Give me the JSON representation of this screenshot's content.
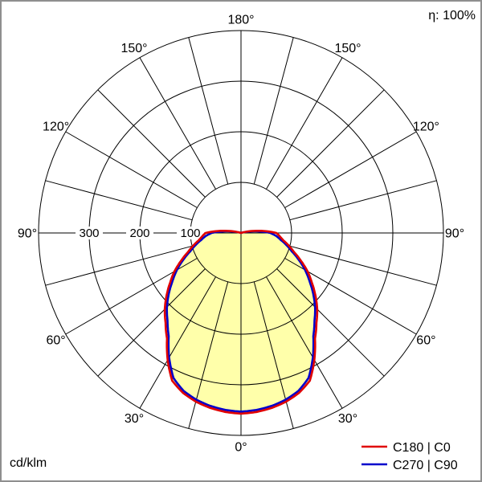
{
  "header": {
    "efficiency": "η: 100%"
  },
  "footer": {
    "unit": "cd/klm"
  },
  "legend": {
    "items": [
      {
        "label": "C180 | C0",
        "color": "#e00000"
      },
      {
        "label": "C270 | C90",
        "color": "#0000cc"
      }
    ]
  },
  "chart_data": {
    "type": "polar",
    "unit": "cd/klm",
    "efficiency_percent": 100,
    "radial_max": 400,
    "rings": [
      100,
      200,
      300,
      400
    ],
    "radial_ticks": [
      300,
      200,
      100
    ],
    "spoke_step_deg": 15,
    "grid_color": "#000000",
    "fill_color": "#ffffaa",
    "angle_labels": [
      {
        "deg": 0,
        "side": 0,
        "text": "0°"
      },
      {
        "deg": 30,
        "side": -1,
        "text": "30°"
      },
      {
        "deg": 30,
        "side": 1,
        "text": "30°"
      },
      {
        "deg": 60,
        "side": -1,
        "text": "60°"
      },
      {
        "deg": 60,
        "side": 1,
        "text": "60°"
      },
      {
        "deg": 90,
        "side": -1,
        "text": "90°"
      },
      {
        "deg": 90,
        "side": 1,
        "text": "90°"
      },
      {
        "deg": 120,
        "side": -1,
        "text": "120°"
      },
      {
        "deg": 120,
        "side": 1,
        "text": "120°"
      },
      {
        "deg": 150,
        "side": -1,
        "text": "150°"
      },
      {
        "deg": 150,
        "side": 1,
        "text": "150°"
      },
      {
        "deg": 180,
        "side": 0,
        "text": "180°"
      }
    ],
    "series": [
      {
        "name": "C180 | C0",
        "color": "#e00000",
        "symmetric": true,
        "points": [
          [
            0,
            357
          ],
          [
            5,
            355
          ],
          [
            10,
            351
          ],
          [
            15,
            345
          ],
          [
            20,
            336
          ],
          [
            25,
            322
          ],
          [
            30,
            290
          ],
          [
            35,
            255
          ],
          [
            40,
            232
          ],
          [
            45,
            213
          ],
          [
            50,
            192
          ],
          [
            55,
            171
          ],
          [
            60,
            152
          ],
          [
            65,
            131
          ],
          [
            70,
            112
          ],
          [
            75,
            98
          ],
          [
            80,
            85
          ],
          [
            85,
            77
          ],
          [
            90,
            70
          ],
          [
            95,
            45
          ],
          [
            100,
            22
          ],
          [
            105,
            7
          ],
          [
            110,
            0
          ]
        ]
      },
      {
        "name": "C270 | C90",
        "color": "#0000cc",
        "symmetric": true,
        "points": [
          [
            0,
            353
          ],
          [
            5,
            351
          ],
          [
            10,
            347
          ],
          [
            15,
            341
          ],
          [
            20,
            332
          ],
          [
            25,
            316
          ],
          [
            30,
            284
          ],
          [
            35,
            249
          ],
          [
            40,
            226
          ],
          [
            45,
            207
          ],
          [
            50,
            186
          ],
          [
            55,
            165
          ],
          [
            60,
            146
          ],
          [
            65,
            126
          ],
          [
            70,
            107
          ],
          [
            75,
            93
          ],
          [
            80,
            80
          ],
          [
            85,
            70
          ],
          [
            90,
            58
          ],
          [
            95,
            34
          ],
          [
            100,
            14
          ],
          [
            105,
            4
          ],
          [
            110,
            0
          ]
        ]
      }
    ]
  }
}
